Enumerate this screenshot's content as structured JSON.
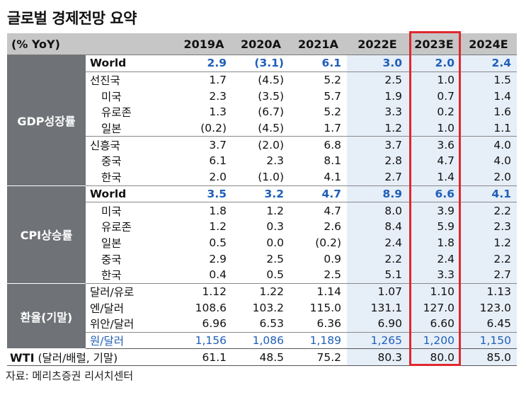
{
  "title": "글로벌 경제전망 요약",
  "unit_label": "(% YoY)",
  "years": [
    "2019A",
    "2020A",
    "2021A",
    "2022E",
    "2023E",
    "2024E"
  ],
  "highlight_color": "#e0282e",
  "gdp": {
    "category": "GDP성장률",
    "rows": [
      {
        "label": "World",
        "values": [
          "2.9",
          "(3.1)",
          "6.1",
          "3.0",
          "2.0",
          "2.4"
        ]
      },
      {
        "label": "선진국",
        "values": [
          "1.7",
          "(4.5)",
          "5.2",
          "2.5",
          "1.0",
          "1.5"
        ]
      },
      {
        "label": "미국",
        "values": [
          "2.3",
          "(3.5)",
          "5.7",
          "1.9",
          "0.7",
          "1.4"
        ]
      },
      {
        "label": "유로존",
        "values": [
          "1.3",
          "(6.7)",
          "5.2",
          "3.3",
          "0.2",
          "1.6"
        ]
      },
      {
        "label": "일본",
        "values": [
          "(0.2)",
          "(4.5)",
          "1.7",
          "1.2",
          "1.0",
          "1.1"
        ]
      },
      {
        "label": "신흥국",
        "values": [
          "3.7",
          "(2.0)",
          "6.8",
          "3.7",
          "3.6",
          "4.0"
        ]
      },
      {
        "label": "중국",
        "values": [
          "6.1",
          "2.3",
          "8.1",
          "2.8",
          "4.7",
          "4.0"
        ]
      },
      {
        "label": "한국",
        "values": [
          "2.0",
          "(1.0)",
          "4.1",
          "2.7",
          "1.4",
          "2.0"
        ]
      }
    ]
  },
  "cpi": {
    "category": "CPI상승률",
    "rows": [
      {
        "label": "World",
        "values": [
          "3.5",
          "3.2",
          "4.7",
          "8.9",
          "6.6",
          "4.1"
        ]
      },
      {
        "label": "미국",
        "values": [
          "1.8",
          "1.2",
          "4.7",
          "8.0",
          "3.9",
          "2.2"
        ]
      },
      {
        "label": "유로존",
        "values": [
          "1.2",
          "0.3",
          "2.6",
          "8.4",
          "5.9",
          "2.3"
        ]
      },
      {
        "label": "일본",
        "values": [
          "0.5",
          "0.0",
          "(0.2)",
          "2.4",
          "1.8",
          "1.2"
        ]
      },
      {
        "label": "중국",
        "values": [
          "2.9",
          "2.5",
          "0.9",
          "2.2",
          "2.4",
          "2.2"
        ]
      },
      {
        "label": "한국",
        "values": [
          "0.4",
          "0.5",
          "2.5",
          "5.1",
          "3.3",
          "2.7"
        ]
      }
    ]
  },
  "fx": {
    "category": "환율(기말)",
    "rows": [
      {
        "label": "달러/유로",
        "values": [
          "1.12",
          "1.22",
          "1.14",
          "1.07",
          "1.10",
          "1.13"
        ]
      },
      {
        "label": "엔/달러",
        "values": [
          "108.6",
          "103.2",
          "115.0",
          "131.1",
          "127.0",
          "123.0"
        ]
      },
      {
        "label": "위안/달러",
        "values": [
          "6.96",
          "6.53",
          "6.36",
          "6.90",
          "6.60",
          "6.45"
        ]
      },
      {
        "label": "원/달러",
        "values": [
          "1,156",
          "1,086",
          "1,189",
          "1,265",
          "1,200",
          "1,150"
        ]
      }
    ]
  },
  "wti": {
    "label_main": "WTI",
    "label_sub": " (달러/배럴, 기말)",
    "values": [
      "61.1",
      "48.5",
      "75.2",
      "80.3",
      "80.0",
      "85.0"
    ]
  },
  "source": "자료: 메리츠증권 리서치센터"
}
